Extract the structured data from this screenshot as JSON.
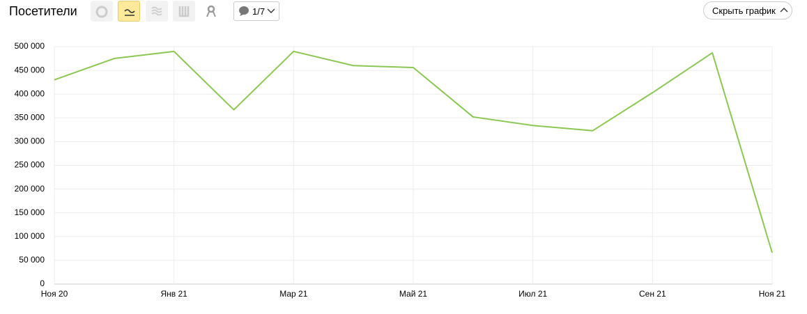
{
  "ui": {
    "title": "Посетители",
    "comments": "1/7",
    "hide_button": "Скрыть график"
  },
  "chart_data": {
    "type": "line",
    "categories": [
      "Ноя 20",
      null,
      "Янв 21",
      null,
      "Мар 21",
      null,
      "Май 21",
      null,
      "Июл 21",
      null,
      "Сен 21",
      null,
      "Ноя 21"
    ],
    "values": [
      430000,
      475000,
      490000,
      367000,
      490000,
      460000,
      456000,
      352000,
      334000,
      323000,
      403000,
      487000,
      66000
    ],
    "color": "#8cc653",
    "ylim": [
      0,
      500000
    ],
    "yticks": [
      0,
      {
        "value": 50000,
        "label": "50 000"
      },
      {
        "value": 100000,
        "label": "100 000"
      },
      {
        "value": 150000,
        "label": "150 000"
      },
      {
        "value": 200000,
        "label": "200 000"
      },
      {
        "value": 250000,
        "label": "250 000"
      },
      {
        "value": 300000,
        "label": "300 000"
      },
      {
        "value": 350000,
        "label": "350 000"
      },
      {
        "value": 400000,
        "label": "400 000"
      },
      {
        "value": 450000,
        "label": "450 000"
      },
      {
        "value": 500000,
        "label": "500 000"
      }
    ],
    "grid": true
  }
}
